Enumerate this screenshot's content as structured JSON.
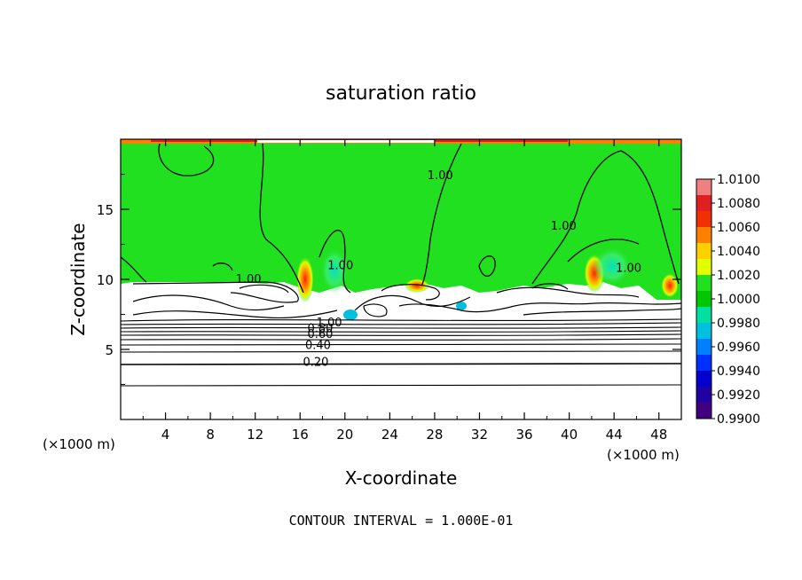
{
  "chart_data": {
    "type": "heatmap",
    "title": "saturation ratio",
    "xlabel": "X-coordinate",
    "ylabel": "Z-coordinate",
    "x_units": "(×1000 m)",
    "z_units": "(×1000 m)",
    "xlim": [
      0,
      50
    ],
    "ylim": [
      0,
      20
    ],
    "x_ticks": [
      4,
      8,
      12,
      16,
      20,
      24,
      28,
      32,
      36,
      40,
      44,
      48
    ],
    "y_ticks": [
      5,
      10,
      15
    ],
    "footer": "CONTOUR INTERVAL = 1.000E-01",
    "colorbar": {
      "labels": [
        "1.0100",
        "1.0080",
        "1.0060",
        "1.0040",
        "1.0020",
        "1.0000",
        "0.9980",
        "0.9960",
        "0.9940",
        "0.9920",
        "0.9900"
      ],
      "colors": [
        "#f08080",
        "#e02020",
        "#f03000",
        "#ff8000",
        "#ffd000",
        "#e0ff00",
        "#20e020",
        "#00c800",
        "#00e0a0",
        "#00c0e0",
        "#0080ff",
        "#0030ff",
        "#0000d0",
        "#2000a0",
        "#400080"
      ]
    },
    "contour_labels": [
      {
        "text": "1.00",
        "x": 11.4,
        "y": 9.8
      },
      {
        "text": "1.00",
        "x": 19.6,
        "y": 10.8
      },
      {
        "text": "1.00",
        "x": 28.5,
        "y": 17.2
      },
      {
        "text": "1.00",
        "x": 39.5,
        "y": 13.6
      },
      {
        "text": "1.00",
        "x": 45.3,
        "y": 10.6
      },
      {
        "text": "1.00",
        "x": 18.6,
        "y": 6.7
      },
      {
        "text": "0.80",
        "x": 17.8,
        "y": 6.3
      },
      {
        "text": "0.60",
        "x": 17.8,
        "y": 5.9
      },
      {
        "text": "0.40",
        "x": 17.6,
        "y": 5.1
      },
      {
        "text": "0.20",
        "x": 17.4,
        "y": 3.9
      }
    ]
  }
}
